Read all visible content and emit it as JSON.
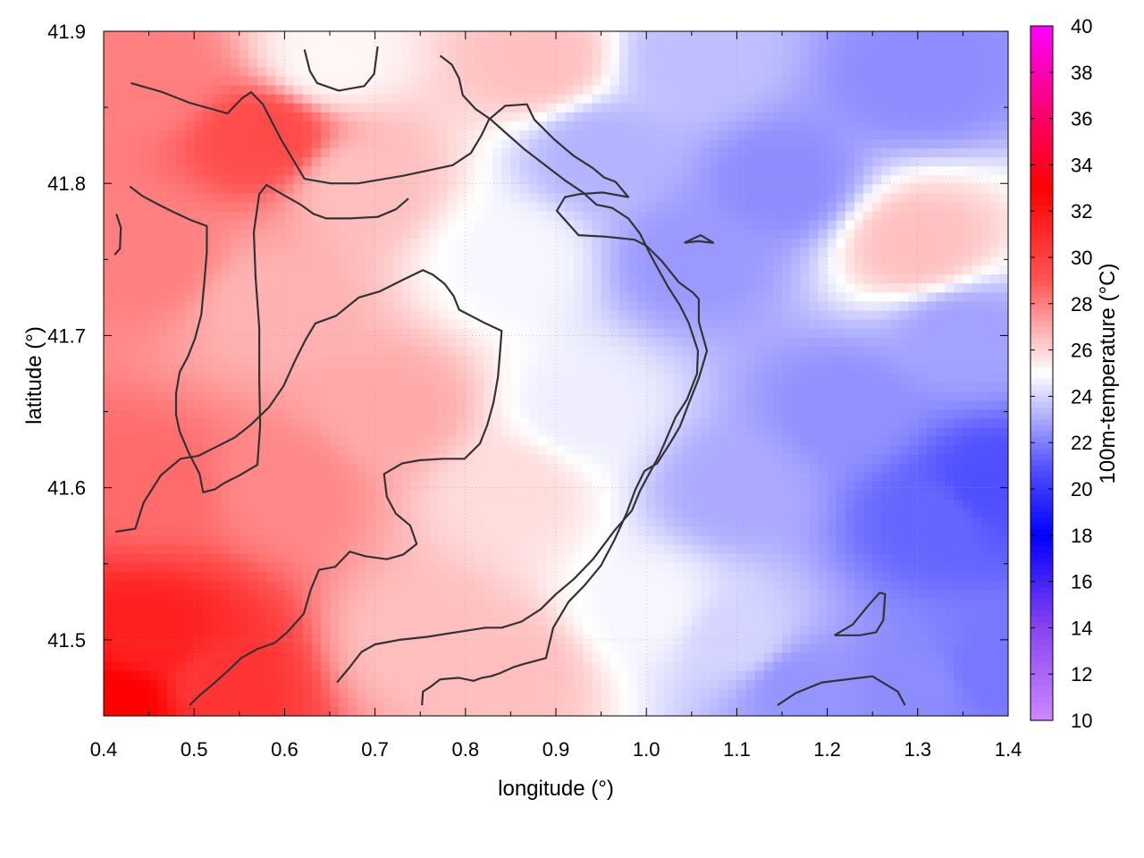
{
  "chart_data": {
    "type": "heatmap",
    "xlabel": "longitude (°)",
    "ylabel": "latitude (°)",
    "colorbar_label": "100m-temperature (°C)",
    "xlim": [
      0.4,
      1.4
    ],
    "ylim": [
      41.45,
      41.9
    ],
    "x_ticks": [
      "0.4",
      "0.5",
      "0.6",
      "0.7",
      "0.8",
      "0.9",
      "1.0",
      "1.1",
      "1.2",
      "1.3",
      "1.4"
    ],
    "y_ticks": [
      "41.5",
      "41.6",
      "41.7",
      "41.8",
      "41.9"
    ],
    "colorbar_range": [
      10,
      40
    ],
    "colorbar_ticks": [
      "10",
      "12",
      "14",
      "16",
      "18",
      "20",
      "22",
      "24",
      "26",
      "28",
      "30",
      "32",
      "34",
      "36",
      "38",
      "40"
    ],
    "colormap": [
      {
        "value": 10,
        "color": "#cc88ff"
      },
      {
        "value": 14,
        "color": "#8844ee"
      },
      {
        "value": 18,
        "color": "#0000ff"
      },
      {
        "value": 21,
        "color": "#5555ff"
      },
      {
        "value": 25,
        "color": "#ffffff"
      },
      {
        "value": 29,
        "color": "#ff5555"
      },
      {
        "value": 33,
        "color": "#ff0000"
      },
      {
        "value": 36,
        "color": "#ff0066"
      },
      {
        "value": 40,
        "color": "#ff00ff"
      }
    ],
    "grid": true,
    "field_anchors": [
      {
        "lon": 0.42,
        "lat": 41.46,
        "temp": 33
      },
      {
        "lon": 0.45,
        "lat": 41.5,
        "temp": 31.5
      },
      {
        "lon": 0.52,
        "lat": 41.47,
        "temp": 30.5
      },
      {
        "lon": 0.45,
        "lat": 41.6,
        "temp": 28.5
      },
      {
        "lon": 0.45,
        "lat": 41.75,
        "temp": 28
      },
      {
        "lon": 0.45,
        "lat": 41.87,
        "temp": 28
      },
      {
        "lon": 0.58,
        "lat": 41.83,
        "temp": 29.5
      },
      {
        "lon": 0.6,
        "lat": 41.6,
        "temp": 27.8
      },
      {
        "lon": 0.58,
        "lat": 41.72,
        "temp": 26.8
      },
      {
        "lon": 0.65,
        "lat": 41.88,
        "temp": 25.2
      },
      {
        "lon": 0.72,
        "lat": 41.65,
        "temp": 27
      },
      {
        "lon": 0.68,
        "lat": 41.8,
        "temp": 26.5
      },
      {
        "lon": 0.75,
        "lat": 41.5,
        "temp": 26.5
      },
      {
        "lon": 0.85,
        "lat": 41.48,
        "temp": 26.5
      },
      {
        "lon": 0.85,
        "lat": 41.6,
        "temp": 25.8
      },
      {
        "lon": 0.88,
        "lat": 41.88,
        "temp": 26.5
      },
      {
        "lon": 0.85,
        "lat": 41.75,
        "temp": 24.8
      },
      {
        "lon": 0.93,
        "lat": 41.65,
        "temp": 24.6
      },
      {
        "lon": 0.95,
        "lat": 41.82,
        "temp": 23.2
      },
      {
        "lon": 1.0,
        "lat": 41.52,
        "temp": 24.8
      },
      {
        "lon": 1.05,
        "lat": 41.75,
        "temp": 22.6
      },
      {
        "lon": 1.05,
        "lat": 41.88,
        "temp": 23.5
      },
      {
        "lon": 1.1,
        "lat": 41.6,
        "temp": 23
      },
      {
        "lon": 1.1,
        "lat": 41.5,
        "temp": 24
      },
      {
        "lon": 1.15,
        "lat": 41.8,
        "temp": 22.3
      },
      {
        "lon": 1.17,
        "lat": 41.47,
        "temp": 22.5
      },
      {
        "lon": 1.22,
        "lat": 41.65,
        "temp": 22.4
      },
      {
        "lon": 1.3,
        "lat": 41.76,
        "temp": 26.5
      },
      {
        "lon": 1.3,
        "lat": 41.87,
        "temp": 22.3
      },
      {
        "lon": 1.32,
        "lat": 41.58,
        "temp": 21.4
      },
      {
        "lon": 1.38,
        "lat": 41.6,
        "temp": 20.8
      },
      {
        "lon": 1.35,
        "lat": 41.7,
        "temp": 22.8
      },
      {
        "lon": 1.3,
        "lat": 41.47,
        "temp": 22.3
      },
      {
        "lon": 1.38,
        "lat": 41.48,
        "temp": 21.8
      }
    ],
    "contours": [
      [
        [
          0.43,
          41.866
        ],
        [
          0.465,
          41.86
        ],
        [
          0.495,
          41.853
        ],
        [
          0.537,
          41.846
        ],
        [
          0.553,
          41.856
        ],
        [
          0.563,
          41.86
        ],
        [
          0.576,
          41.852
        ],
        [
          0.596,
          41.829
        ],
        [
          0.613,
          41.812
        ],
        [
          0.622,
          41.803
        ],
        [
          0.651,
          41.8
        ],
        [
          0.681,
          41.8
        ],
        [
          0.731,
          41.805
        ],
        [
          0.786,
          41.812
        ],
        [
          0.806,
          41.82
        ],
        [
          0.818,
          41.832
        ],
        [
          0.826,
          41.842
        ],
        [
          0.844,
          41.851
        ],
        [
          0.868,
          41.852
        ],
        [
          0.876,
          41.842
        ],
        [
          0.898,
          41.829
        ],
        [
          0.92,
          41.818
        ],
        [
          0.941,
          41.81
        ],
        [
          0.953,
          41.804
        ],
        [
          0.966,
          41.801
        ],
        [
          0.98,
          41.791
        ],
        [
          0.952,
          41.794
        ],
        [
          0.927,
          41.793
        ],
        [
          0.91,
          41.791
        ],
        [
          0.901,
          41.782
        ],
        [
          0.925,
          41.766
        ],
        [
          0.955,
          41.765
        ],
        [
          0.987,
          41.763
        ],
        [
          1.0,
          41.759
        ],
        [
          1.017,
          41.749
        ],
        [
          1.036,
          41.735
        ],
        [
          1.052,
          41.728
        ],
        [
          1.058,
          41.724
        ],
        [
          1.058,
          41.709
        ],
        [
          1.067,
          41.69
        ],
        [
          1.058,
          41.672
        ],
        [
          1.046,
          41.654
        ],
        [
          1.037,
          41.64
        ],
        [
          1.027,
          41.63
        ],
        [
          1.012,
          41.616
        ],
        [
          0.998,
          41.611
        ],
        [
          0.988,
          41.599
        ],
        [
          0.978,
          41.583
        ],
        [
          0.965,
          41.566
        ],
        [
          0.95,
          41.549
        ],
        [
          0.932,
          41.536
        ],
        [
          0.914,
          41.525
        ],
        [
          0.897,
          41.508
        ],
        [
          0.889,
          41.488
        ],
        [
          0.864,
          41.484
        ],
        [
          0.853,
          41.482
        ],
        [
          0.838,
          41.478
        ],
        [
          0.828,
          41.476
        ],
        [
          0.818,
          41.475
        ],
        [
          0.809,
          41.473
        ],
        [
          0.793,
          41.475
        ],
        [
          0.772,
          41.474
        ],
        [
          0.761,
          41.469
        ],
        [
          0.753,
          41.466
        ],
        [
          0.752,
          41.457
        ]
      ],
      [
        [
          0.413,
          41.571
        ],
        [
          0.435,
          41.573
        ],
        [
          0.444,
          41.59
        ],
        [
          0.463,
          41.608
        ],
        [
          0.485,
          41.619
        ],
        [
          0.505,
          41.621
        ],
        [
          0.525,
          41.627
        ],
        [
          0.545,
          41.633
        ],
        [
          0.562,
          41.641
        ],
        [
          0.583,
          41.653
        ],
        [
          0.599,
          41.667
        ],
        [
          0.612,
          41.684
        ],
        [
          0.623,
          41.697
        ],
        [
          0.634,
          41.708
        ],
        [
          0.657,
          41.713
        ],
        [
          0.682,
          41.725
        ],
        [
          0.705,
          41.729
        ],
        [
          0.732,
          41.737
        ],
        [
          0.753,
          41.743
        ],
        [
          0.764,
          41.74
        ],
        [
          0.777,
          41.734
        ],
        [
          0.787,
          41.726
        ],
        [
          0.793,
          41.717
        ],
        [
          0.822,
          41.708
        ],
        [
          0.84,
          41.703
        ],
        [
          0.838,
          41.688
        ],
        [
          0.836,
          41.673
        ],
        [
          0.831,
          41.656
        ],
        [
          0.824,
          41.641
        ],
        [
          0.816,
          41.629
        ],
        [
          0.799,
          41.619
        ],
        [
          0.775,
          41.619
        ],
        [
          0.749,
          41.618
        ],
        [
          0.73,
          41.616
        ],
        [
          0.71,
          41.609
        ],
        [
          0.713,
          41.594
        ],
        [
          0.723,
          41.583
        ],
        [
          0.739,
          41.575
        ],
        [
          0.746,
          41.563
        ],
        [
          0.731,
          41.556
        ],
        [
          0.713,
          41.553
        ],
        [
          0.689,
          41.555
        ],
        [
          0.672,
          41.558
        ],
        [
          0.656,
          41.548
        ],
        [
          0.638,
          41.546
        ],
        [
          0.629,
          41.533
        ],
        [
          0.621,
          41.517
        ],
        [
          0.603,
          41.505
        ],
        [
          0.589,
          41.498
        ],
        [
          0.57,
          41.494
        ],
        [
          0.552,
          41.488
        ],
        [
          0.538,
          41.48
        ],
        [
          0.523,
          41.472
        ],
        [
          0.507,
          41.464
        ],
        [
          0.495,
          41.457
        ]
      ],
      [
        [
          0.429,
          41.798
        ],
        [
          0.442,
          41.792
        ],
        [
          0.461,
          41.786
        ],
        [
          0.478,
          41.781
        ],
        [
          0.496,
          41.776
        ],
        [
          0.514,
          41.772
        ],
        [
          0.514,
          41.755
        ],
        [
          0.511,
          41.733
        ],
        [
          0.508,
          41.714
        ],
        [
          0.501,
          41.698
        ],
        [
          0.493,
          41.686
        ],
        [
          0.484,
          41.676
        ],
        [
          0.48,
          41.662
        ],
        [
          0.48,
          41.648
        ],
        [
          0.484,
          41.637
        ],
        [
          0.494,
          41.623
        ],
        [
          0.506,
          41.609
        ],
        [
          0.51,
          41.597
        ],
        [
          0.523,
          41.599
        ],
        [
          0.533,
          41.603
        ],
        [
          0.55,
          41.608
        ],
        [
          0.57,
          41.615
        ],
        [
          0.573,
          41.641
        ],
        [
          0.572,
          41.671
        ],
        [
          0.572,
          41.705
        ],
        [
          0.568,
          41.738
        ],
        [
          0.566,
          41.768
        ],
        [
          0.572,
          41.793
        ],
        [
          0.58,
          41.799
        ],
        [
          0.6,
          41.792
        ],
        [
          0.618,
          41.786
        ],
        [
          0.632,
          41.78
        ],
        [
          0.646,
          41.777
        ],
        [
          0.672,
          41.777
        ],
        [
          0.703,
          41.778
        ],
        [
          0.723,
          41.783
        ],
        [
          0.737,
          41.79
        ]
      ],
      [
        [
          0.658,
          41.472
        ],
        [
          0.672,
          41.482
        ],
        [
          0.685,
          41.492
        ],
        [
          0.7,
          41.497
        ],
        [
          0.727,
          41.5
        ],
        [
          0.758,
          41.502
        ],
        [
          0.79,
          41.505
        ],
        [
          0.822,
          41.508
        ],
        [
          0.84,
          41.508
        ],
        [
          0.862,
          41.512
        ],
        [
          0.883,
          41.52
        ],
        [
          0.9,
          41.53
        ],
        [
          0.92,
          41.54
        ],
        [
          0.941,
          41.553
        ],
        [
          0.965,
          41.572
        ],
        [
          0.984,
          41.585
        ],
        [
          0.993,
          41.598
        ],
        [
          1.003,
          41.609
        ],
        [
          1.014,
          41.621
        ],
        [
          1.022,
          41.632
        ],
        [
          1.032,
          41.646
        ],
        [
          1.045,
          41.658
        ],
        [
          1.056,
          41.675
        ],
        [
          1.057,
          41.69
        ],
        [
          1.047,
          41.708
        ],
        [
          1.037,
          41.72
        ],
        [
          1.024,
          41.732
        ],
        [
          1.01,
          41.747
        ],
        [
          1.002,
          41.756
        ],
        [
          0.993,
          41.767
        ],
        [
          0.98,
          41.777
        ],
        [
          0.962,
          41.784
        ],
        [
          0.945,
          41.786
        ],
        [
          0.93,
          41.794
        ],
        [
          0.91,
          41.802
        ],
        [
          0.888,
          41.812
        ],
        [
          0.864,
          41.823
        ],
        [
          0.845,
          41.833
        ],
        [
          0.828,
          41.842
        ],
        [
          0.811,
          41.849
        ],
        [
          0.797,
          41.858
        ],
        [
          0.793,
          41.869
        ],
        [
          0.785,
          41.878
        ],
        [
          0.772,
          41.884
        ]
      ]
    ],
    "small_contours": [
      [
        [
          0.622,
          41.888
        ],
        [
          0.628,
          41.874
        ],
        [
          0.636,
          41.866
        ],
        [
          0.66,
          41.861
        ],
        [
          0.688,
          41.864
        ],
        [
          0.699,
          41.872
        ],
        [
          0.703,
          41.89
        ]
      ],
      [
        [
          0.412,
          41.753
        ],
        [
          0.418,
          41.757
        ],
        [
          0.419,
          41.771
        ],
        [
          0.414,
          41.78
        ]
      ],
      [
        [
          1.042,
          41.761
        ],
        [
          1.057,
          41.762
        ],
        [
          1.074,
          41.761
        ],
        [
          1.06,
          41.766
        ],
        [
          1.042,
          41.761
        ]
      ],
      [
        [
          1.208,
          41.503
        ],
        [
          1.228,
          41.51
        ],
        [
          1.246,
          41.523
        ],
        [
          1.258,
          41.531
        ],
        [
          1.264,
          41.53
        ],
        [
          1.262,
          41.513
        ],
        [
          1.254,
          41.505
        ],
        [
          1.236,
          41.503
        ],
        [
          1.208,
          41.503
        ]
      ],
      [
        [
          1.145,
          41.457
        ],
        [
          1.165,
          41.465
        ],
        [
          1.194,
          41.472
        ],
        [
          1.222,
          41.474
        ],
        [
          1.25,
          41.476
        ],
        [
          1.278,
          41.466
        ],
        [
          1.286,
          41.457
        ]
      ]
    ]
  }
}
